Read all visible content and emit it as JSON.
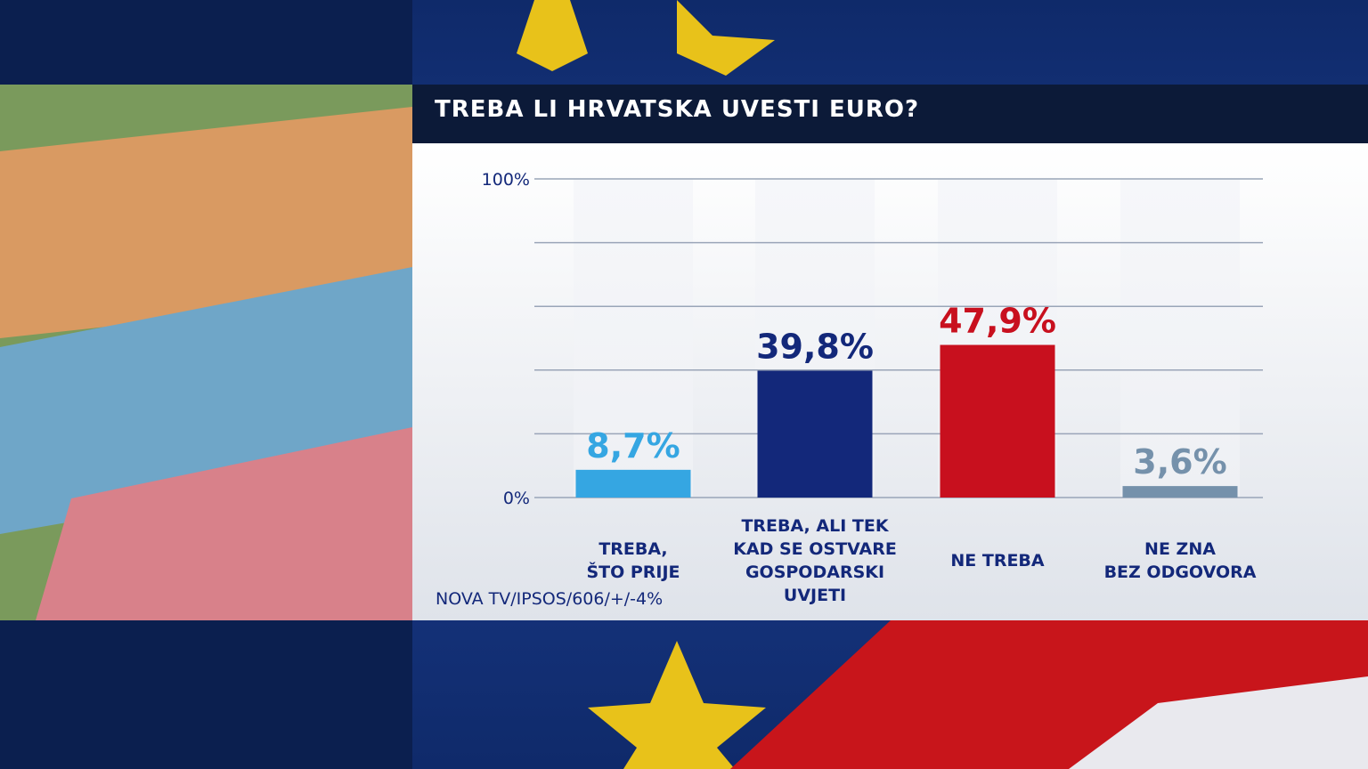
{
  "chart_data": {
    "type": "bar",
    "title": "TREBA LI HRVATSKA UVESTI EURO?",
    "categories": [
      "TREBA,\nŠTO PRIJE",
      "TREBA, ALI TEK\nKAD SE OSTVARE\nGOSPODARSKI\nUVJETI",
      "NE TREBA",
      "NE ZNA\nBEZ ODGOVORA"
    ],
    "values": [
      8.7,
      39.8,
      47.9,
      3.6
    ],
    "value_labels": [
      "8,7%",
      "39,8%",
      "47,9%",
      "3,6%"
    ],
    "colors": [
      "#35a6e2",
      "#13287a",
      "#c8101e",
      "#7591ab"
    ],
    "ylim": [
      0,
      100
    ],
    "yticks": [
      {
        "value": 0,
        "label": "0%"
      },
      {
        "value": 100,
        "label": "100%"
      }
    ],
    "grid_lines": [
      0,
      20,
      40,
      60,
      80,
      100
    ],
    "source": "NOVA TV/IPSOS/606/+/-4%"
  }
}
